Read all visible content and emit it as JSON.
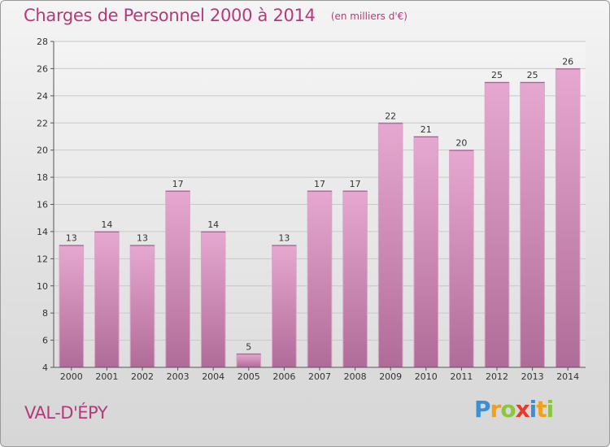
{
  "header": {
    "title": "Charges de Personnel 2000 à 2014",
    "subtitle": "(en milliers d'€)"
  },
  "commune": "VAL-D'ÉPY",
  "logo": {
    "text": "Proxiti",
    "letters": [
      {
        "char": "P",
        "color": "#3a8fd6"
      },
      {
        "char": "r",
        "color": "#f0a020"
      },
      {
        "char": "o",
        "color": "#8cc63f"
      },
      {
        "char": "x",
        "color": "#e8392c"
      },
      {
        "char": "i",
        "color": "#3a8fd6"
      },
      {
        "char": "t",
        "color": "#f0a020"
      },
      {
        "char": "i",
        "color": "#8cc63f"
      }
    ]
  },
  "colors": {
    "accent": "#b43a7a",
    "bar_top": "#e6a8d0",
    "bar_bottom": "#b06c98"
  },
  "chart_data": {
    "type": "bar",
    "title": "Charges de Personnel 2000 à 2014",
    "subtitle": "(en milliers d'€)",
    "categories": [
      "2000",
      "2001",
      "2002",
      "2003",
      "2004",
      "2005",
      "2006",
      "2007",
      "2008",
      "2009",
      "2010",
      "2011",
      "2012",
      "2013",
      "2014"
    ],
    "values": [
      13,
      14,
      13,
      17,
      14,
      5,
      13,
      17,
      17,
      22,
      21,
      20,
      25,
      25,
      26
    ],
    "ylim": [
      4,
      28
    ],
    "yticks": [
      4,
      6,
      8,
      10,
      12,
      14,
      16,
      18,
      20,
      22,
      24,
      26,
      28
    ],
    "grid": true,
    "data_labels": true
  }
}
